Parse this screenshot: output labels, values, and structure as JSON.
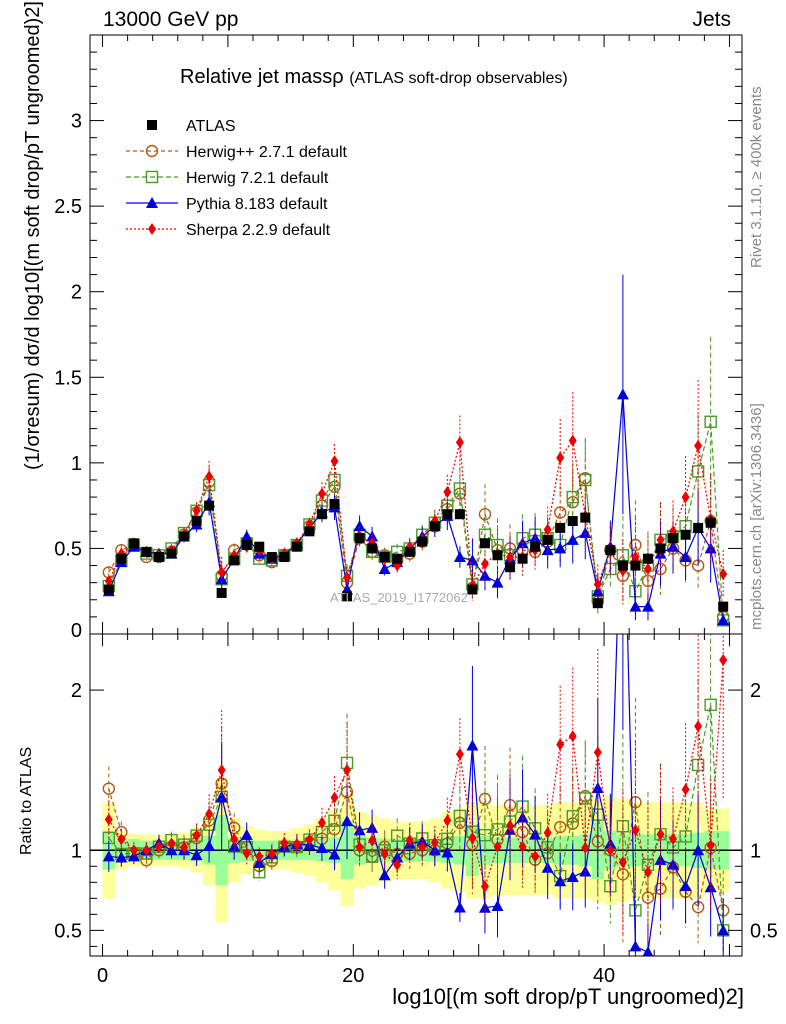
{
  "header": {
    "left": "13000 GeV pp",
    "right": "Jets"
  },
  "title": "Relative jet massρ",
  "title_sub": "(ATLAS soft-drop observables)",
  "side_notes": {
    "rivet": "Rivet 3.1.10, ≥ 400k events",
    "mcplots": "mcplots.cern.ch [arXiv:1306.3436]"
  },
  "watermark": "ATLAS_2019_I1772062",
  "legend": [
    {
      "name": "ATLAS",
      "color": "#000000"
    },
    {
      "name": "Herwig++ 2.7.1 default",
      "color": "#b05a10"
    },
    {
      "name": "Herwig 7.2.1 default",
      "color": "#4a9a2a"
    },
    {
      "name": "Pythia 8.183 default",
      "color": "#0000dd"
    },
    {
      "name": "Sherpa 2.2.9 default",
      "color": "#ee0000"
    }
  ],
  "chart_data": {
    "type": "scatter",
    "x": [
      0.5,
      1.5,
      2.5,
      3.5,
      4.5,
      5.5,
      6.5,
      7.5,
      8.5,
      9.5,
      10.5,
      11.5,
      12.5,
      13.5,
      14.5,
      15.5,
      16.5,
      17.5,
      18.5,
      19.5,
      20.5,
      21.5,
      22.5,
      23.5,
      24.5,
      25.5,
      26.5,
      27.5,
      28.5,
      29.5,
      30.5,
      31.5,
      32.5,
      33.5,
      34.5,
      35.5,
      36.5,
      37.5,
      38.5,
      39.5,
      40.5,
      41.5,
      42.5,
      43.5,
      44.5,
      45.5,
      46.5,
      47.5,
      48.5,
      49.5
    ],
    "series": [
      {
        "name": "ATLAS",
        "values": [
          0.26,
          0.44,
          0.53,
          0.48,
          0.45,
          0.47,
          0.57,
          0.66,
          0.75,
          0.24,
          0.43,
          0.52,
          0.51,
          0.45,
          0.45,
          0.51,
          0.6,
          0.7,
          0.76,
          0.22,
          0.56,
          0.5,
          0.45,
          0.44,
          0.48,
          0.54,
          0.63,
          0.7,
          0.7,
          0.26,
          0.53,
          0.46,
          0.39,
          0.44,
          0.51,
          0.55,
          0.62,
          0.66,
          0.68,
          0.18,
          0.49,
          0.4,
          0.4,
          0.44,
          0.5,
          0.56,
          0.58,
          0.62,
          0.65,
          0.16
        ]
      },
      {
        "name": "Herwig++ 2.7.1 default",
        "values": [
          0.36,
          0.49,
          0.52,
          0.45,
          0.45,
          0.48,
          0.58,
          0.71,
          0.89,
          0.34,
          0.49,
          0.53,
          0.46,
          0.42,
          0.46,
          0.52,
          0.63,
          0.75,
          0.86,
          0.3,
          0.56,
          0.48,
          0.46,
          0.43,
          0.47,
          0.54,
          0.63,
          0.73,
          0.82,
          0.27,
          0.7,
          0.49,
          0.5,
          0.49,
          0.48,
          0.54,
          0.71,
          0.77,
          0.91,
          0.19,
          0.49,
          0.34,
          0.52,
          0.31,
          0.38,
          0.5,
          0.43,
          0.4,
          0.66,
          0.1
        ]
      },
      {
        "name": "Herwig 7.2.1 default",
        "values": [
          0.28,
          0.43,
          0.52,
          0.47,
          0.46,
          0.5,
          0.59,
          0.72,
          0.87,
          0.32,
          0.44,
          0.53,
          0.44,
          0.43,
          0.46,
          0.52,
          0.64,
          0.78,
          0.9,
          0.34,
          0.58,
          0.48,
          0.45,
          0.48,
          0.5,
          0.58,
          0.65,
          0.75,
          0.85,
          0.29,
          0.58,
          0.52,
          0.46,
          0.56,
          0.58,
          0.56,
          0.52,
          0.8,
          0.9,
          0.22,
          0.38,
          0.46,
          0.25,
          0.4,
          0.55,
          0.57,
          0.63,
          0.95,
          1.24,
          0.08
        ]
      },
      {
        "name": "Pythia 8.183 default",
        "values": [
          0.25,
          0.42,
          0.51,
          0.48,
          0.47,
          0.47,
          0.57,
          0.64,
          0.77,
          0.32,
          0.44,
          0.57,
          0.47,
          0.44,
          0.46,
          0.53,
          0.62,
          0.71,
          0.74,
          0.26,
          0.63,
          0.57,
          0.38,
          0.42,
          0.5,
          0.57,
          0.63,
          0.69,
          0.45,
          0.43,
          0.34,
          0.3,
          0.44,
          0.53,
          0.56,
          0.49,
          0.5,
          0.55,
          0.59,
          0.25,
          0.51,
          1.4,
          0.16,
          0.16,
          0.47,
          0.51,
          0.45,
          0.62,
          0.5,
          0.08
        ]
      },
      {
        "name": "Sherpa 2.2.9 default",
        "values": [
          0.31,
          0.47,
          0.53,
          0.48,
          0.46,
          0.49,
          0.58,
          0.72,
          0.92,
          0.36,
          0.46,
          0.51,
          0.49,
          0.44,
          0.47,
          0.53,
          0.64,
          0.82,
          1.01,
          0.33,
          0.57,
          0.53,
          0.44,
          0.4,
          0.51,
          0.55,
          0.66,
          0.83,
          1.12,
          0.28,
          0.41,
          0.47,
          0.45,
          0.45,
          0.49,
          0.61,
          1.03,
          1.13,
          0.69,
          0.29,
          0.49,
          0.37,
          0.45,
          0.38,
          0.55,
          0.6,
          0.8,
          1.1,
          0.67,
          0.35
        ]
      }
    ],
    "main_plot": {
      "ylabel": "(1/σresum) dσ/d log10[(m soft drop/pT ungroomed)2]",
      "ylim": [
        0,
        3.5
      ],
      "yticks": [
        "0.5",
        "1",
        "1.5",
        "2",
        "2.5",
        "3"
      ]
    },
    "ratio_plot": {
      "ylabel": "Ratio to ATLAS",
      "ylim": [
        0.34,
        2.35
      ],
      "yticks": [
        "0.5",
        "1",
        "2"
      ]
    },
    "xlim": [
      -1,
      51
    ],
    "xticks": [
      "0",
      "20",
      "40"
    ],
    "xlabel": "log10[(m soft drop/pT ungroomed)2]",
    "band_inner": [
      0.12,
      0.06,
      0.07,
      0.06,
      0.06,
      0.06,
      0.06,
      0.07,
      0.09,
      0.22,
      0.08,
      0.07,
      0.06,
      0.06,
      0.06,
      0.06,
      0.06,
      0.07,
      0.08,
      0.18,
      0.09,
      0.08,
      0.07,
      0.07,
      0.07,
      0.07,
      0.07,
      0.08,
      0.09,
      0.16,
      0.09,
      0.08,
      0.08,
      0.08,
      0.08,
      0.08,
      0.09,
      0.09,
      0.1,
      0.18,
      0.12,
      0.1,
      0.1,
      0.1,
      0.1,
      0.1,
      0.1,
      0.11,
      0.12,
      0.12
    ],
    "band_outer": [
      0.3,
      0.12,
      0.1,
      0.1,
      0.1,
      0.1,
      0.11,
      0.14,
      0.22,
      0.45,
      0.2,
      0.15,
      0.13,
      0.12,
      0.12,
      0.14,
      0.16,
      0.2,
      0.25,
      0.35,
      0.24,
      0.22,
      0.2,
      0.18,
      0.18,
      0.18,
      0.2,
      0.24,
      0.26,
      0.3,
      0.3,
      0.28,
      0.28,
      0.28,
      0.28,
      0.28,
      0.3,
      0.3,
      0.3,
      0.32,
      0.34,
      0.32,
      0.3,
      0.3,
      0.3,
      0.3,
      0.3,
      0.3,
      0.26,
      0.26
    ],
    "ratio_errors": [
      0.1,
      0.06,
      0.05,
      0.05,
      0.05,
      0.05,
      0.06,
      0.07,
      0.1,
      0.25,
      0.08,
      0.07,
      0.06,
      0.06,
      0.06,
      0.06,
      0.06,
      0.08,
      0.1,
      0.2,
      0.1,
      0.1,
      0.1,
      0.1,
      0.1,
      0.1,
      0.1,
      0.12,
      0.14,
      0.3,
      0.25,
      0.3,
      0.28,
      0.25,
      0.22,
      0.22,
      0.22,
      0.25,
      0.26,
      0.4,
      0.3,
      0.5,
      0.5,
      0.5,
      0.4,
      0.3,
      0.3,
      0.35,
      0.4,
      0.4
    ]
  }
}
